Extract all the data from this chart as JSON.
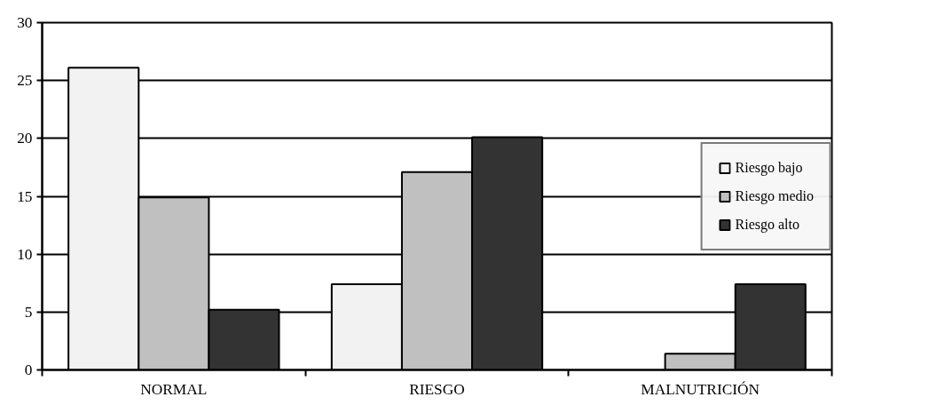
{
  "chart_data": {
    "type": "bar",
    "categories": [
      "NORMAL",
      "RIESGO",
      "MALNUTRICIÓN"
    ],
    "series": [
      {
        "name": "Riesgo bajo",
        "color": "#f2f2f2",
        "values": [
          26.1,
          7.4,
          null
        ]
      },
      {
        "name": "Riesgo medio",
        "color": "#c0c0c0",
        "values": [
          14.9,
          17.1,
          1.4
        ]
      },
      {
        "name": "Riesgo alto",
        "color": "#333333",
        "values": [
          5.2,
          20.1,
          7.4
        ]
      }
    ],
    "ylim": [
      0,
      30
    ],
    "yticks": [
      0,
      5,
      10,
      15,
      20,
      25,
      30
    ],
    "grid": "y",
    "legend": "right"
  }
}
